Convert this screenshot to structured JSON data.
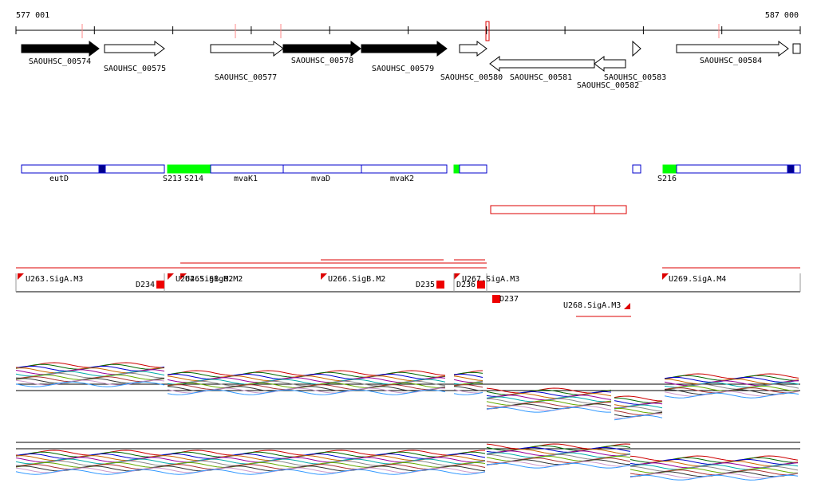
{
  "ruler": {
    "start": "577 001",
    "end": "587 000"
  },
  "genes": [
    {
      "label": "SAOUHSC_00574",
      "color": "#000000"
    },
    {
      "label": "SAOUHSC_00575",
      "color": "#ffffff"
    },
    {
      "label": "SAOUHSC_00577",
      "color": "#ffffff"
    },
    {
      "label": "SAOUHSC_00578",
      "color": "#000000"
    },
    {
      "label": "SAOUHSC_00579",
      "color": "#000000"
    },
    {
      "label": "SAOUHSC_00580",
      "color": "#ffffff"
    },
    {
      "label": "SAOUHSC_00581",
      "color": "#ffffff"
    },
    {
      "label": "SAOUHSC_00582",
      "color": "#ffffff"
    },
    {
      "label": "SAOUHSC_00583",
      "color": "#ffffff"
    },
    {
      "label": "SAOUHSC_00584",
      "color": "#ffffff"
    }
  ],
  "segments": [
    "eutD",
    "S213",
    "S214",
    "mvaK1",
    "mvaD",
    "mvaK2",
    "S216"
  ],
  "units": [
    "U263.SigA.M3",
    "D234",
    "U264.SigB.M2",
    "U265.SigB.M2",
    "U266.SigB.M2",
    "D235",
    "D236",
    "U267.SigA.M3",
    "D237",
    "U268.SigA.M3",
    "U269.SigA.M4"
  ]
}
